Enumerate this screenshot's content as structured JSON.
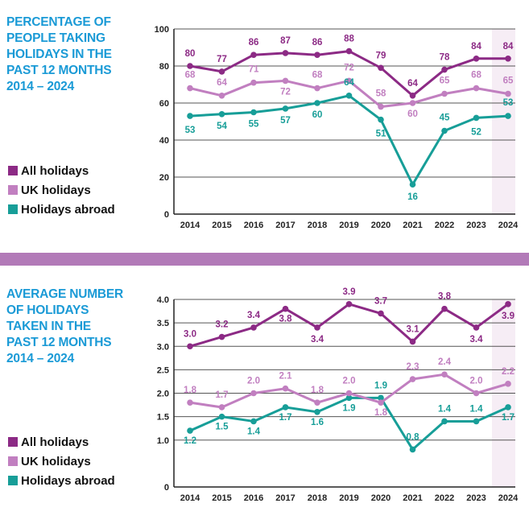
{
  "colors": {
    "all": "#8c2a85",
    "uk": "#c17fc0",
    "abroad": "#179e98",
    "title": "#1a9ad6",
    "divider": "#b27ab8",
    "highlight": "#f6edf5"
  },
  "chart_data": [
    {
      "type": "line",
      "title_lines": [
        "PERCENTAGE OF",
        "PEOPLE TAKING",
        "HOLIDAYS IN THE",
        "PAST 12 MONTHS",
        "2014 – 2024"
      ],
      "categories": [
        "2014",
        "2015",
        "2016",
        "2017",
        "2018",
        "2019",
        "2020",
        "2021",
        "2022",
        "2023",
        "2024"
      ],
      "ylim": [
        0,
        100
      ],
      "yticks": [
        "0",
        "20",
        "40",
        "60",
        "80",
        "100"
      ],
      "ytick_values": [
        0,
        20,
        40,
        60,
        80,
        100
      ],
      "highlight_category": "2024",
      "series": [
        {
          "key": "all",
          "name": "All holidays",
          "values": [
            80,
            77,
            86,
            87,
            86,
            88,
            79,
            64,
            78,
            84,
            84
          ],
          "labels": [
            "80",
            "77",
            "86",
            "87",
            "86",
            "88",
            "79",
            "64",
            "78",
            "84",
            "84"
          ]
        },
        {
          "key": "uk",
          "name": "UK holidays",
          "values": [
            68,
            64,
            71,
            72,
            68,
            72,
            58,
            60,
            65,
            68,
            65
          ],
          "labels": [
            "68",
            "64",
            "71",
            "72",
            "68",
            "72",
            "58",
            "60",
            "65",
            "68",
            "65"
          ]
        },
        {
          "key": "abroad",
          "name": "Holidays abroad",
          "values": [
            53,
            54,
            55,
            57,
            60,
            64,
            51,
            16,
            45,
            52,
            53
          ],
          "labels": [
            "53",
            "54",
            "55",
            "57",
            "60",
            "64",
            "51",
            "16",
            "45",
            "52",
            "53"
          ]
        }
      ]
    },
    {
      "type": "line",
      "title_lines": [
        "AVERAGE NUMBER",
        "OF HOLIDAYS",
        "TAKEN IN THE",
        "PAST 12 MONTHS",
        "2014 – 2024"
      ],
      "categories": [
        "2014",
        "2015",
        "2016",
        "2017",
        "2018",
        "2019",
        "2020",
        "2021",
        "2022",
        "2023",
        "2024"
      ],
      "ylim": [
        0,
        4.0
      ],
      "yticks": [
        "0",
        "1.0",
        "1.5",
        "2.0",
        "2.5",
        "3.0",
        "3.5",
        "4.0"
      ],
      "ytick_values": [
        0,
        1.0,
        1.5,
        2.0,
        2.5,
        3.0,
        3.5,
        4.0
      ],
      "highlight_category": "2024",
      "series": [
        {
          "key": "all",
          "name": "All holidays",
          "values": [
            3.0,
            3.2,
            3.4,
            3.8,
            3.4,
            3.9,
            3.7,
            3.1,
            3.8,
            3.4,
            3.9
          ],
          "labels": [
            "3.0",
            "3.2",
            "3.4",
            "3.8",
            "3.4",
            "3.9",
            "3.7",
            "3.1",
            "3.8",
            "3.4",
            "3.9"
          ]
        },
        {
          "key": "uk",
          "name": "UK holidays",
          "values": [
            1.8,
            1.7,
            2.0,
            2.1,
            1.8,
            2.0,
            1.8,
            2.3,
            2.4,
            2.0,
            2.2
          ],
          "labels": [
            "1.8",
            "1.7",
            "2.0",
            "2.1",
            "1.8",
            "2.0",
            "1.8",
            "2.3",
            "2.4",
            "2.0",
            "2.2"
          ]
        },
        {
          "key": "abroad",
          "name": "Holidays abroad",
          "values": [
            1.2,
            1.5,
            1.4,
            1.7,
            1.6,
            1.9,
            1.9,
            0.8,
            1.4,
            1.4,
            1.7
          ],
          "labels": [
            "1.2",
            "1.5",
            "1.4",
            "1.7",
            "1.6",
            "1.9",
            "1.9",
            "0.8",
            "1.4",
            "1.4",
            "1.7"
          ]
        }
      ]
    }
  ]
}
